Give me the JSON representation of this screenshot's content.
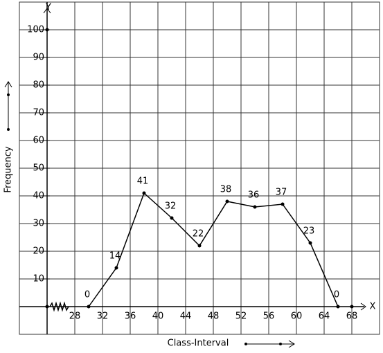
{
  "chart_data": {
    "type": "line",
    "x_label": "Class-Interval",
    "y_label": "Frequency",
    "x_axis_name": "X",
    "y_axis_name": "Y",
    "x": [
      30,
      34,
      38,
      42,
      46,
      50,
      54,
      58,
      62,
      66
    ],
    "series": [
      {
        "color": "#000000",
        "values": [
          0,
          14,
          41,
          32,
          22,
          38,
          36,
          37,
          23,
          0
        ]
      }
    ],
    "xlim": [
      20,
      72
    ],
    "ylim": [
      -10,
      110
    ],
    "xticks": [
      28,
      32,
      36,
      40,
      44,
      48,
      52,
      56,
      60,
      64,
      68
    ],
    "yticks": [
      10,
      20,
      30,
      40,
      50,
      60,
      70,
      80,
      90,
      100
    ],
    "grid": true,
    "data_labels": true
  }
}
